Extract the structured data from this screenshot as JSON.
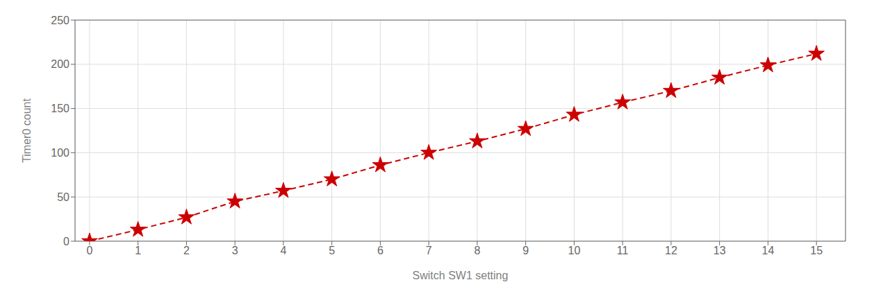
{
  "chart_data": {
    "type": "line",
    "x": [
      0,
      1,
      2,
      3,
      4,
      5,
      6,
      7,
      8,
      9,
      10,
      11,
      12,
      13,
      14,
      15
    ],
    "values": [
      0,
      13,
      27,
      45,
      57,
      70,
      86,
      100,
      113,
      127,
      143,
      157,
      170,
      185,
      199,
      212
    ],
    "color": "#cc0000",
    "marker": "star",
    "line_style": "dashed",
    "xlabel": "Switch SW1 setting",
    "ylabel": "Timer0 count",
    "xlim": [
      -0.3,
      15.6
    ],
    "ylim": [
      0,
      250
    ],
    "xticks": [
      0,
      1,
      2,
      3,
      4,
      5,
      6,
      7,
      8,
      9,
      10,
      11,
      12,
      13,
      14,
      15
    ],
    "yticks": [
      0,
      50,
      100,
      150,
      200,
      250
    ],
    "grid": true
  }
}
